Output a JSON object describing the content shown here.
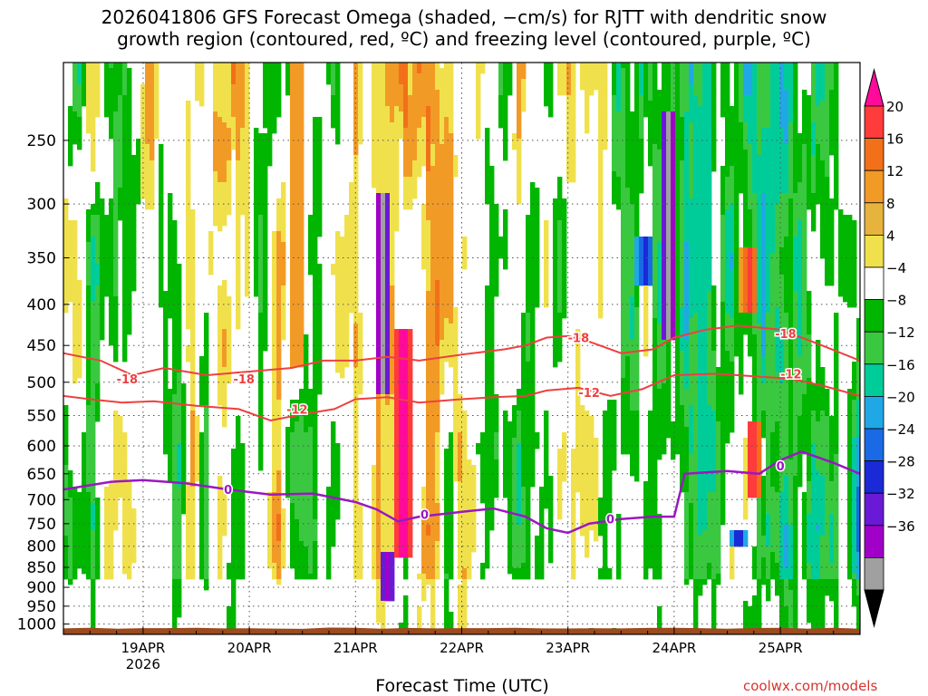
{
  "chart_data": {
    "type": "heatmap",
    "title_line1": "2026041806 GFS Forecast Omega (shaded, −cm/s) for RJTT with dendritic snow",
    "title_line2": "growth region (contoured, red, ºC) and freezing level (contoured, purple, ºC)",
    "xlabel": "Forecast Time (UTC)",
    "x_ticks": [
      {
        "label": "19APR",
        "sub": "2026",
        "day": 19
      },
      {
        "label": "20APR",
        "sub": "",
        "day": 20
      },
      {
        "label": "21APR",
        "sub": "",
        "day": 21
      },
      {
        "label": "22APR",
        "sub": "",
        "day": 22
      },
      {
        "label": "23APR",
        "sub": "",
        "day": 23
      },
      {
        "label": "24APR",
        "sub": "",
        "day": 24
      },
      {
        "label": "25APR",
        "sub": "",
        "day": 25
      }
    ],
    "x_range_days": [
      18.25,
      25.75
    ],
    "y_ticks": [
      250,
      300,
      350,
      400,
      450,
      500,
      550,
      600,
      650,
      700,
      750,
      800,
      850,
      900,
      950,
      1000
    ],
    "y_range_hpa": [
      200,
      1030
    ],
    "y_scale": "log",
    "colorbar_labels": [
      "20",
      "16",
      "12",
      "8",
      "4",
      "−4",
      "−8",
      "−12",
      "−16",
      "−20",
      "−24",
      "−28",
      "−32",
      "−36"
    ],
    "colorbar_colors": [
      "#ff0a9b",
      "#ff3b3b",
      "#f2701a",
      "#f29a26",
      "#e6b43c",
      "#f0e14c",
      "#ffffff",
      "#00b600",
      "#3ac840",
      "#00cc9a",
      "#20a8e6",
      "#1a6ae6",
      "#1a2ad6",
      "#6a1ad6",
      "#a000c8",
      "#a0a0a0",
      "#000000"
    ],
    "contour_labels": [
      {
        "text": "-18",
        "day": 18.85,
        "p": 495,
        "color": "#ee4040"
      },
      {
        "text": "-18",
        "day": 19.95,
        "p": 495,
        "color": "#ee4040"
      },
      {
        "text": "-12",
        "day": 20.45,
        "p": 540,
        "color": "#ee4040"
      },
      {
        "text": "-18",
        "day": 23.1,
        "p": 440,
        "color": "#ee4040"
      },
      {
        "text": "-12",
        "day": 23.2,
        "p": 515,
        "color": "#ee4040"
      },
      {
        "text": "-18",
        "day": 25.05,
        "p": 435,
        "color": "#ee4040"
      },
      {
        "text": "-12",
        "day": 25.1,
        "p": 488,
        "color": "#ee4040"
      },
      {
        "text": "0",
        "day": 19.8,
        "p": 680,
        "color": "#9a18c0"
      },
      {
        "text": "0",
        "day": 21.65,
        "p": 730,
        "color": "#9a18c0"
      },
      {
        "text": "0",
        "day": 23.4,
        "p": 740,
        "color": "#9a18c0"
      },
      {
        "text": "0",
        "day": 25.0,
        "p": 635,
        "color": "#9a18c0"
      }
    ],
    "freezing_level_0C_hpa": [
      [
        18.25,
        680
      ],
      [
        18.7,
        665
      ],
      [
        19.0,
        662
      ],
      [
        19.4,
        668
      ],
      [
        19.8,
        680
      ],
      [
        20.2,
        690
      ],
      [
        20.6,
        688
      ],
      [
        21.0,
        705
      ],
      [
        21.2,
        720
      ],
      [
        21.4,
        745
      ],
      [
        21.6,
        735
      ],
      [
        22.0,
        725
      ],
      [
        22.3,
        718
      ],
      [
        22.6,
        735
      ],
      [
        22.8,
        760
      ],
      [
        23.0,
        770
      ],
      [
        23.2,
        750
      ],
      [
        23.5,
        740
      ],
      [
        23.8,
        735
      ],
      [
        24.0,
        735
      ],
      [
        24.1,
        650
      ],
      [
        24.5,
        645
      ],
      [
        24.8,
        650
      ],
      [
        25.0,
        625
      ],
      [
        25.2,
        610
      ],
      [
        25.5,
        630
      ],
      [
        25.75,
        650
      ]
    ],
    "isotherm_minus18C_hpa": [
      [
        18.25,
        460
      ],
      [
        18.6,
        470
      ],
      [
        18.9,
        490
      ],
      [
        19.2,
        480
      ],
      [
        19.6,
        490
      ],
      [
        20.0,
        485
      ],
      [
        20.4,
        480
      ],
      [
        20.7,
        470
      ],
      [
        21.0,
        470
      ],
      [
        21.3,
        465
      ],
      [
        21.6,
        470
      ],
      [
        22.0,
        462
      ],
      [
        22.4,
        455
      ],
      [
        22.6,
        450
      ],
      [
        22.8,
        440
      ],
      [
        23.0,
        438
      ],
      [
        23.2,
        445
      ],
      [
        23.5,
        460
      ],
      [
        23.8,
        455
      ],
      [
        24.0,
        440
      ],
      [
        24.3,
        430
      ],
      [
        24.6,
        425
      ],
      [
        25.0,
        430
      ],
      [
        25.3,
        445
      ],
      [
        25.75,
        470
      ]
    ],
    "isotherm_minus12C_hpa": [
      [
        18.25,
        520
      ],
      [
        18.5,
        525
      ],
      [
        18.8,
        530
      ],
      [
        19.1,
        528
      ],
      [
        19.5,
        535
      ],
      [
        19.9,
        540
      ],
      [
        20.2,
        558
      ],
      [
        20.5,
        548
      ],
      [
        20.8,
        540
      ],
      [
        21.0,
        525
      ],
      [
        21.3,
        522
      ],
      [
        21.6,
        530
      ],
      [
        22.0,
        525
      ],
      [
        22.3,
        522
      ],
      [
        22.6,
        520
      ],
      [
        22.8,
        512
      ],
      [
        23.1,
        508
      ],
      [
        23.4,
        520
      ],
      [
        23.7,
        510
      ],
      [
        24.0,
        490
      ],
      [
        24.4,
        488
      ],
      [
        24.8,
        492
      ],
      [
        25.1,
        495
      ],
      [
        25.4,
        505
      ],
      [
        25.75,
        520
      ]
    ],
    "omega_bands": [
      {
        "day": 21.25,
        "p_top": 290,
        "p_bot": 520,
        "value": -40
      },
      {
        "day": 21.3,
        "p_top": 810,
        "p_bot": 930,
        "value": -36
      },
      {
        "day": 23.95,
        "p_top": 230,
        "p_bot": 440,
        "value": -40
      },
      {
        "day": 24.6,
        "p_top": 760,
        "p_bot": 800,
        "value": -28
      },
      {
        "day": 23.72,
        "p_top": 330,
        "p_bot": 380,
        "value": -28
      },
      {
        "day": 21.45,
        "p_top": 430,
        "p_bot": 820,
        "value": 24
      },
      {
        "day": 20.45,
        "p_top": 200,
        "p_bot": 480,
        "value": 12
      },
      {
        "day": 24.7,
        "p_top": 340,
        "p_bot": 410,
        "value": 18
      },
      {
        "day": 24.75,
        "p_top": 560,
        "p_bot": 700,
        "value": 20
      }
    ],
    "credit": "coolwx.com/models"
  }
}
